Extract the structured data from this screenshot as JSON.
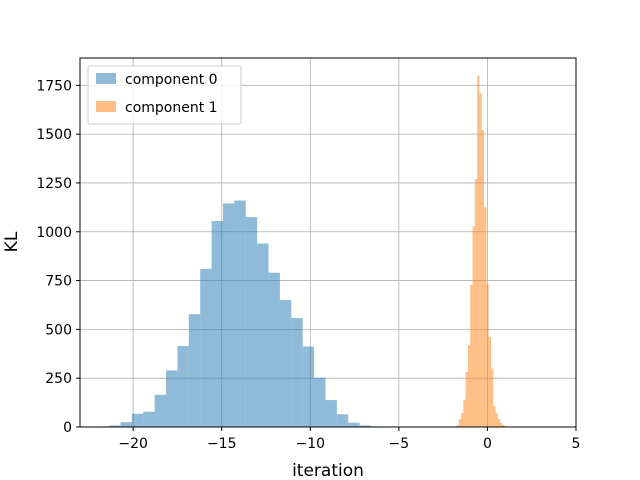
{
  "chart_data": {
    "type": "histogram",
    "title": "",
    "xlabel": "iteration",
    "ylabel": "KL",
    "xlim": [
      -23,
      5
    ],
    "ylim": [
      0,
      1890
    ],
    "xticks": [
      -20,
      -15,
      -10,
      -5,
      0,
      5
    ],
    "yticks": [
      0,
      250,
      500,
      750,
      1000,
      1250,
      1500,
      1750
    ],
    "xtick_labels": [
      "−20",
      "−15",
      "−10",
      "−5",
      "0",
      "5"
    ],
    "ytick_labels": [
      "0",
      "250",
      "500",
      "750",
      "1000",
      "1250",
      "1500",
      "1750"
    ],
    "grid": true,
    "legend_position": "top-left",
    "series": [
      {
        "name": "component 0",
        "color": "#1f77b4",
        "alpha": 0.5,
        "bin_start": -22.0,
        "bin_width": 0.6429,
        "counts": [
          3,
          8,
          25,
          68,
          78,
          165,
          290,
          415,
          578,
          810,
          1055,
          1145,
          1160,
          1075,
          940,
          790,
          650,
          558,
          412,
          252,
          138,
          65,
          22,
          8,
          3
        ]
      },
      {
        "name": "component 1",
        "color": "#ff7f0e",
        "alpha": 0.5,
        "bin_start": -1.75,
        "bin_width": 0.13,
        "counts": [
          8,
          40,
          70,
          140,
          282,
          418,
          728,
          1030,
          1270,
          1800,
          1710,
          1520,
          1125,
          730,
          460,
          300,
          108,
          70,
          40,
          20,
          10,
          4,
          2
        ]
      }
    ]
  }
}
